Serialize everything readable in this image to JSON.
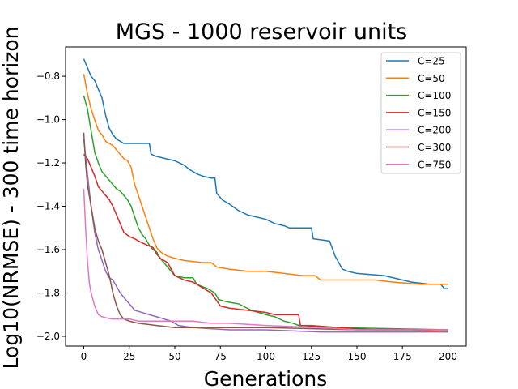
{
  "chart_data": {
    "type": "line",
    "title": "MGS - 1000 reservoir units",
    "xlabel": "Generations",
    "ylabel": "Log10(NRMSE) - 300 time horizon",
    "xlim": [
      -10,
      210
    ],
    "ylim": [
      -2.045,
      -0.665
    ],
    "xticks": [
      0,
      25,
      50,
      75,
      100,
      125,
      150,
      175,
      200
    ],
    "yticks": [
      -2.0,
      -1.8,
      -1.6,
      -1.4,
      -1.2,
      -1.0,
      -0.8
    ],
    "ytick_labels": [
      "−2.0",
      "−1.8",
      "−1.6",
      "−1.4",
      "−1.2",
      "−1.0",
      "−0.8"
    ],
    "legend_position": "top-right",
    "series": [
      {
        "name": "C=25",
        "color": "#1f77b4",
        "points": [
          [
            0,
            -0.72
          ],
          [
            2,
            -0.76
          ],
          [
            4,
            -0.8
          ],
          [
            6,
            -0.82
          ],
          [
            8,
            -0.86
          ],
          [
            10,
            -0.9
          ],
          [
            12,
            -0.98
          ],
          [
            14,
            -1.04
          ],
          [
            16,
            -1.07
          ],
          [
            18,
            -1.09
          ],
          [
            20,
            -1.1
          ],
          [
            22,
            -1.11
          ],
          [
            36,
            -1.11
          ],
          [
            37,
            -1.16
          ],
          [
            40,
            -1.17
          ],
          [
            45,
            -1.18
          ],
          [
            50,
            -1.19
          ],
          [
            55,
            -1.21
          ],
          [
            58,
            -1.23
          ],
          [
            62,
            -1.25
          ],
          [
            65,
            -1.26
          ],
          [
            70,
            -1.27
          ],
          [
            72,
            -1.27
          ],
          [
            73,
            -1.34
          ],
          [
            76,
            -1.37
          ],
          [
            80,
            -1.39
          ],
          [
            85,
            -1.42
          ],
          [
            90,
            -1.44
          ],
          [
            95,
            -1.45
          ],
          [
            100,
            -1.46
          ],
          [
            105,
            -1.48
          ],
          [
            110,
            -1.49
          ],
          [
            113,
            -1.5
          ],
          [
            125,
            -1.5
          ],
          [
            126,
            -1.55
          ],
          [
            135,
            -1.56
          ],
          [
            138,
            -1.63
          ],
          [
            140,
            -1.66
          ],
          [
            142,
            -1.69
          ],
          [
            145,
            -1.7
          ],
          [
            150,
            -1.71
          ],
          [
            165,
            -1.72
          ],
          [
            180,
            -1.75
          ],
          [
            190,
            -1.76
          ],
          [
            196,
            -1.76
          ],
          [
            198,
            -1.78
          ],
          [
            200,
            -1.78
          ]
        ]
      },
      {
        "name": "C=50",
        "color": "#ff7f0e",
        "points": [
          [
            0,
            -0.79
          ],
          [
            2,
            -0.88
          ],
          [
            4,
            -0.95
          ],
          [
            6,
            -1.0
          ],
          [
            8,
            -1.05
          ],
          [
            10,
            -1.07
          ],
          [
            12,
            -1.1
          ],
          [
            14,
            -1.11
          ],
          [
            16,
            -1.12
          ],
          [
            18,
            -1.14
          ],
          [
            20,
            -1.16
          ],
          [
            22,
            -1.18
          ],
          [
            24,
            -1.19
          ],
          [
            26,
            -1.22
          ],
          [
            28,
            -1.3
          ],
          [
            30,
            -1.35
          ],
          [
            32,
            -1.4
          ],
          [
            34,
            -1.45
          ],
          [
            36,
            -1.5
          ],
          [
            38,
            -1.55
          ],
          [
            40,
            -1.59
          ],
          [
            42,
            -1.61
          ],
          [
            44,
            -1.62
          ],
          [
            46,
            -1.63
          ],
          [
            50,
            -1.64
          ],
          [
            55,
            -1.65
          ],
          [
            65,
            -1.66
          ],
          [
            70,
            -1.66
          ],
          [
            73,
            -1.68
          ],
          [
            80,
            -1.69
          ],
          [
            90,
            -1.7
          ],
          [
            100,
            -1.7
          ],
          [
            110,
            -1.71
          ],
          [
            120,
            -1.72
          ],
          [
            127,
            -1.72
          ],
          [
            130,
            -1.74
          ],
          [
            160,
            -1.74
          ],
          [
            170,
            -1.75
          ],
          [
            185,
            -1.76
          ],
          [
            200,
            -1.76
          ]
        ]
      },
      {
        "name": "C=100",
        "color": "#2ca02c",
        "points": [
          [
            0,
            -0.89
          ],
          [
            2,
            -0.95
          ],
          [
            4,
            -1.05
          ],
          [
            6,
            -1.15
          ],
          [
            8,
            -1.2
          ],
          [
            10,
            -1.24
          ],
          [
            12,
            -1.26
          ],
          [
            14,
            -1.28
          ],
          [
            16,
            -1.3
          ],
          [
            18,
            -1.32
          ],
          [
            20,
            -1.33
          ],
          [
            22,
            -1.35
          ],
          [
            24,
            -1.37
          ],
          [
            26,
            -1.4
          ],
          [
            28,
            -1.45
          ],
          [
            30,
            -1.5
          ],
          [
            32,
            -1.53
          ],
          [
            34,
            -1.55
          ],
          [
            36,
            -1.58
          ],
          [
            38,
            -1.6
          ],
          [
            40,
            -1.61
          ],
          [
            42,
            -1.64
          ],
          [
            45,
            -1.67
          ],
          [
            48,
            -1.7
          ],
          [
            50,
            -1.72
          ],
          [
            55,
            -1.73
          ],
          [
            60,
            -1.73
          ],
          [
            62,
            -1.76
          ],
          [
            68,
            -1.78
          ],
          [
            72,
            -1.8
          ],
          [
            74,
            -1.83
          ],
          [
            78,
            -1.84
          ],
          [
            85,
            -1.85
          ],
          [
            92,
            -1.88
          ],
          [
            100,
            -1.9
          ],
          [
            105,
            -1.91
          ],
          [
            110,
            -1.93
          ],
          [
            115,
            -1.94
          ],
          [
            118,
            -1.95
          ],
          [
            125,
            -1.95
          ],
          [
            140,
            -1.96
          ],
          [
            200,
            -1.97
          ]
        ]
      },
      {
        "name": "C=150",
        "color": "#d62728",
        "points": [
          [
            0,
            -1.16
          ],
          [
            2,
            -1.18
          ],
          [
            4,
            -1.22
          ],
          [
            6,
            -1.26
          ],
          [
            8,
            -1.31
          ],
          [
            10,
            -1.33
          ],
          [
            12,
            -1.35
          ],
          [
            14,
            -1.37
          ],
          [
            16,
            -1.4
          ],
          [
            18,
            -1.44
          ],
          [
            20,
            -1.48
          ],
          [
            22,
            -1.52
          ],
          [
            25,
            -1.54
          ],
          [
            28,
            -1.55
          ],
          [
            30,
            -1.56
          ],
          [
            35,
            -1.58
          ],
          [
            38,
            -1.59
          ],
          [
            40,
            -1.62
          ],
          [
            42,
            -1.64
          ],
          [
            44,
            -1.65
          ],
          [
            46,
            -1.66
          ],
          [
            50,
            -1.72
          ],
          [
            55,
            -1.74
          ],
          [
            60,
            -1.75
          ],
          [
            70,
            -1.8
          ],
          [
            75,
            -1.86
          ],
          [
            80,
            -1.87
          ],
          [
            90,
            -1.88
          ],
          [
            100,
            -1.89
          ],
          [
            105,
            -1.9
          ],
          [
            118,
            -1.9
          ],
          [
            119,
            -1.95
          ],
          [
            140,
            -1.96
          ],
          [
            160,
            -1.97
          ],
          [
            180,
            -1.97
          ],
          [
            200,
            -1.98
          ]
        ]
      },
      {
        "name": "C=200",
        "color": "#9467bd",
        "points": [
          [
            0,
            -1.09
          ],
          [
            2,
            -1.25
          ],
          [
            4,
            -1.4
          ],
          [
            6,
            -1.52
          ],
          [
            8,
            -1.6
          ],
          [
            10,
            -1.65
          ],
          [
            12,
            -1.7
          ],
          [
            14,
            -1.73
          ],
          [
            16,
            -1.74
          ],
          [
            18,
            -1.77
          ],
          [
            20,
            -1.8
          ],
          [
            22,
            -1.82
          ],
          [
            24,
            -1.84
          ],
          [
            26,
            -1.86
          ],
          [
            28,
            -1.88
          ],
          [
            32,
            -1.89
          ],
          [
            36,
            -1.9
          ],
          [
            40,
            -1.91
          ],
          [
            44,
            -1.92
          ],
          [
            48,
            -1.93
          ],
          [
            52,
            -1.95
          ],
          [
            60,
            -1.96
          ],
          [
            80,
            -1.97
          ],
          [
            100,
            -1.97
          ],
          [
            130,
            -1.98
          ],
          [
            160,
            -1.98
          ],
          [
            200,
            -1.98
          ]
        ]
      },
      {
        "name": "C=300",
        "color": "#8c564b",
        "points": [
          [
            0,
            -1.06
          ],
          [
            1,
            -1.2
          ],
          [
            2,
            -1.3
          ],
          [
            4,
            -1.4
          ],
          [
            6,
            -1.5
          ],
          [
            8,
            -1.56
          ],
          [
            10,
            -1.6
          ],
          [
            12,
            -1.66
          ],
          [
            14,
            -1.72
          ],
          [
            16,
            -1.8
          ],
          [
            18,
            -1.86
          ],
          [
            20,
            -1.9
          ],
          [
            22,
            -1.92
          ],
          [
            25,
            -1.93
          ],
          [
            30,
            -1.94
          ],
          [
            40,
            -1.95
          ],
          [
            50,
            -1.96
          ],
          [
            60,
            -1.96
          ],
          [
            80,
            -1.96
          ],
          [
            100,
            -1.96
          ],
          [
            150,
            -1.97
          ],
          [
            200,
            -1.97
          ]
        ]
      },
      {
        "name": "C=750",
        "color": "#e377c2",
        "points": [
          [
            0,
            -1.32
          ],
          [
            1,
            -1.5
          ],
          [
            2,
            -1.65
          ],
          [
            3,
            -1.75
          ],
          [
            4,
            -1.8
          ],
          [
            5,
            -1.83
          ],
          [
            6,
            -1.86
          ],
          [
            7,
            -1.88
          ],
          [
            8,
            -1.9
          ],
          [
            10,
            -1.91
          ],
          [
            15,
            -1.92
          ],
          [
            25,
            -1.92
          ],
          [
            30,
            -1.93
          ],
          [
            40,
            -1.93
          ],
          [
            60,
            -1.93
          ],
          [
            70,
            -1.94
          ],
          [
            80,
            -1.94
          ],
          [
            100,
            -1.95
          ],
          [
            130,
            -1.96
          ],
          [
            150,
            -1.97
          ],
          [
            175,
            -1.97
          ],
          [
            200,
            -1.97
          ]
        ]
      }
    ]
  }
}
